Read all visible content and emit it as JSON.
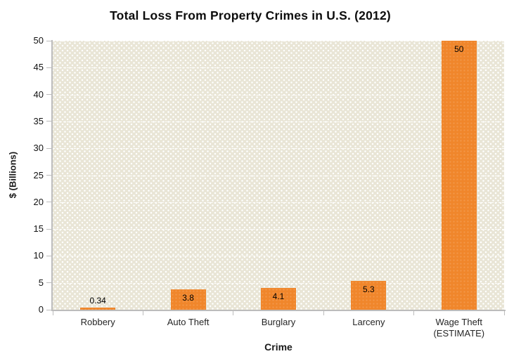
{
  "chart_data": {
    "type": "bar",
    "title": "Total Loss From Property Crimes in U.S. (2012)",
    "xlabel": "Crime",
    "ylabel": "$ (Billions)",
    "categories": [
      "Robbery",
      "Auto Theft",
      "Burglary",
      "Larceny",
      "Wage Theft\n(ESTIMATE)"
    ],
    "values": [
      0.34,
      3.8,
      4.1,
      5.3,
      50
    ],
    "value_labels": [
      "0.34",
      "3.8",
      "4.1",
      "5.3",
      "50"
    ],
    "ylim": [
      0,
      50
    ],
    "ytick_step": 5,
    "grid": "horizontal-dashed-white",
    "legend_position": "none",
    "bar_color": "#f0862b",
    "axis_color": "#bcbcbc",
    "plot_background": "#e9e5d6",
    "plot_pattern": "white-dot-texture"
  }
}
